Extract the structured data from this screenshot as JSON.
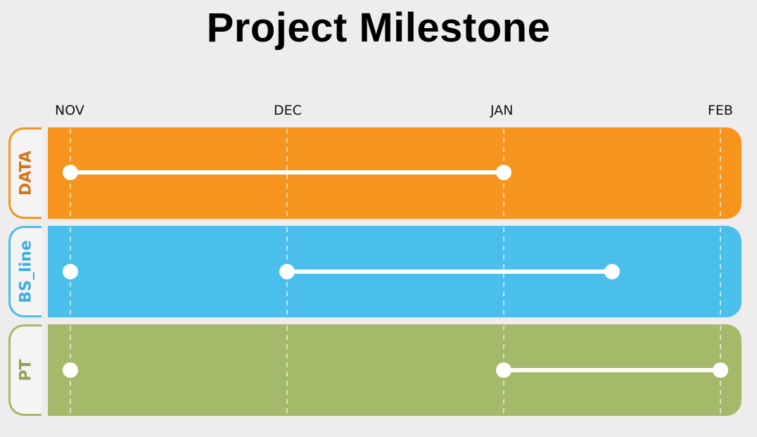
{
  "title": "Project Milestone",
  "timeline": {
    "months": [
      "NOV",
      "DEC",
      "JAN",
      "FEB"
    ]
  },
  "lanes": [
    {
      "label": "DATA",
      "color": "#f7941d",
      "tab_border_color": "#f7941d",
      "tab_text_color": "#d4751a",
      "points": [
        0,
        2
      ],
      "segments": [
        [
          0,
          2
        ]
      ]
    },
    {
      "label": "BS_line",
      "color": "#4bbfeb",
      "tab_border_color": "#4bbfeb",
      "tab_text_color": "#3aaee0",
      "points": [
        0,
        1,
        2.5
      ],
      "segments": [
        [
          1,
          2.5
        ]
      ]
    },
    {
      "label": "PT",
      "color": "#a4b96a",
      "tab_border_color": "#a4b96a",
      "tab_text_color": "#8da456",
      "points": [
        0,
        2,
        3
      ],
      "segments": [
        [
          2,
          3
        ]
      ]
    }
  ]
}
